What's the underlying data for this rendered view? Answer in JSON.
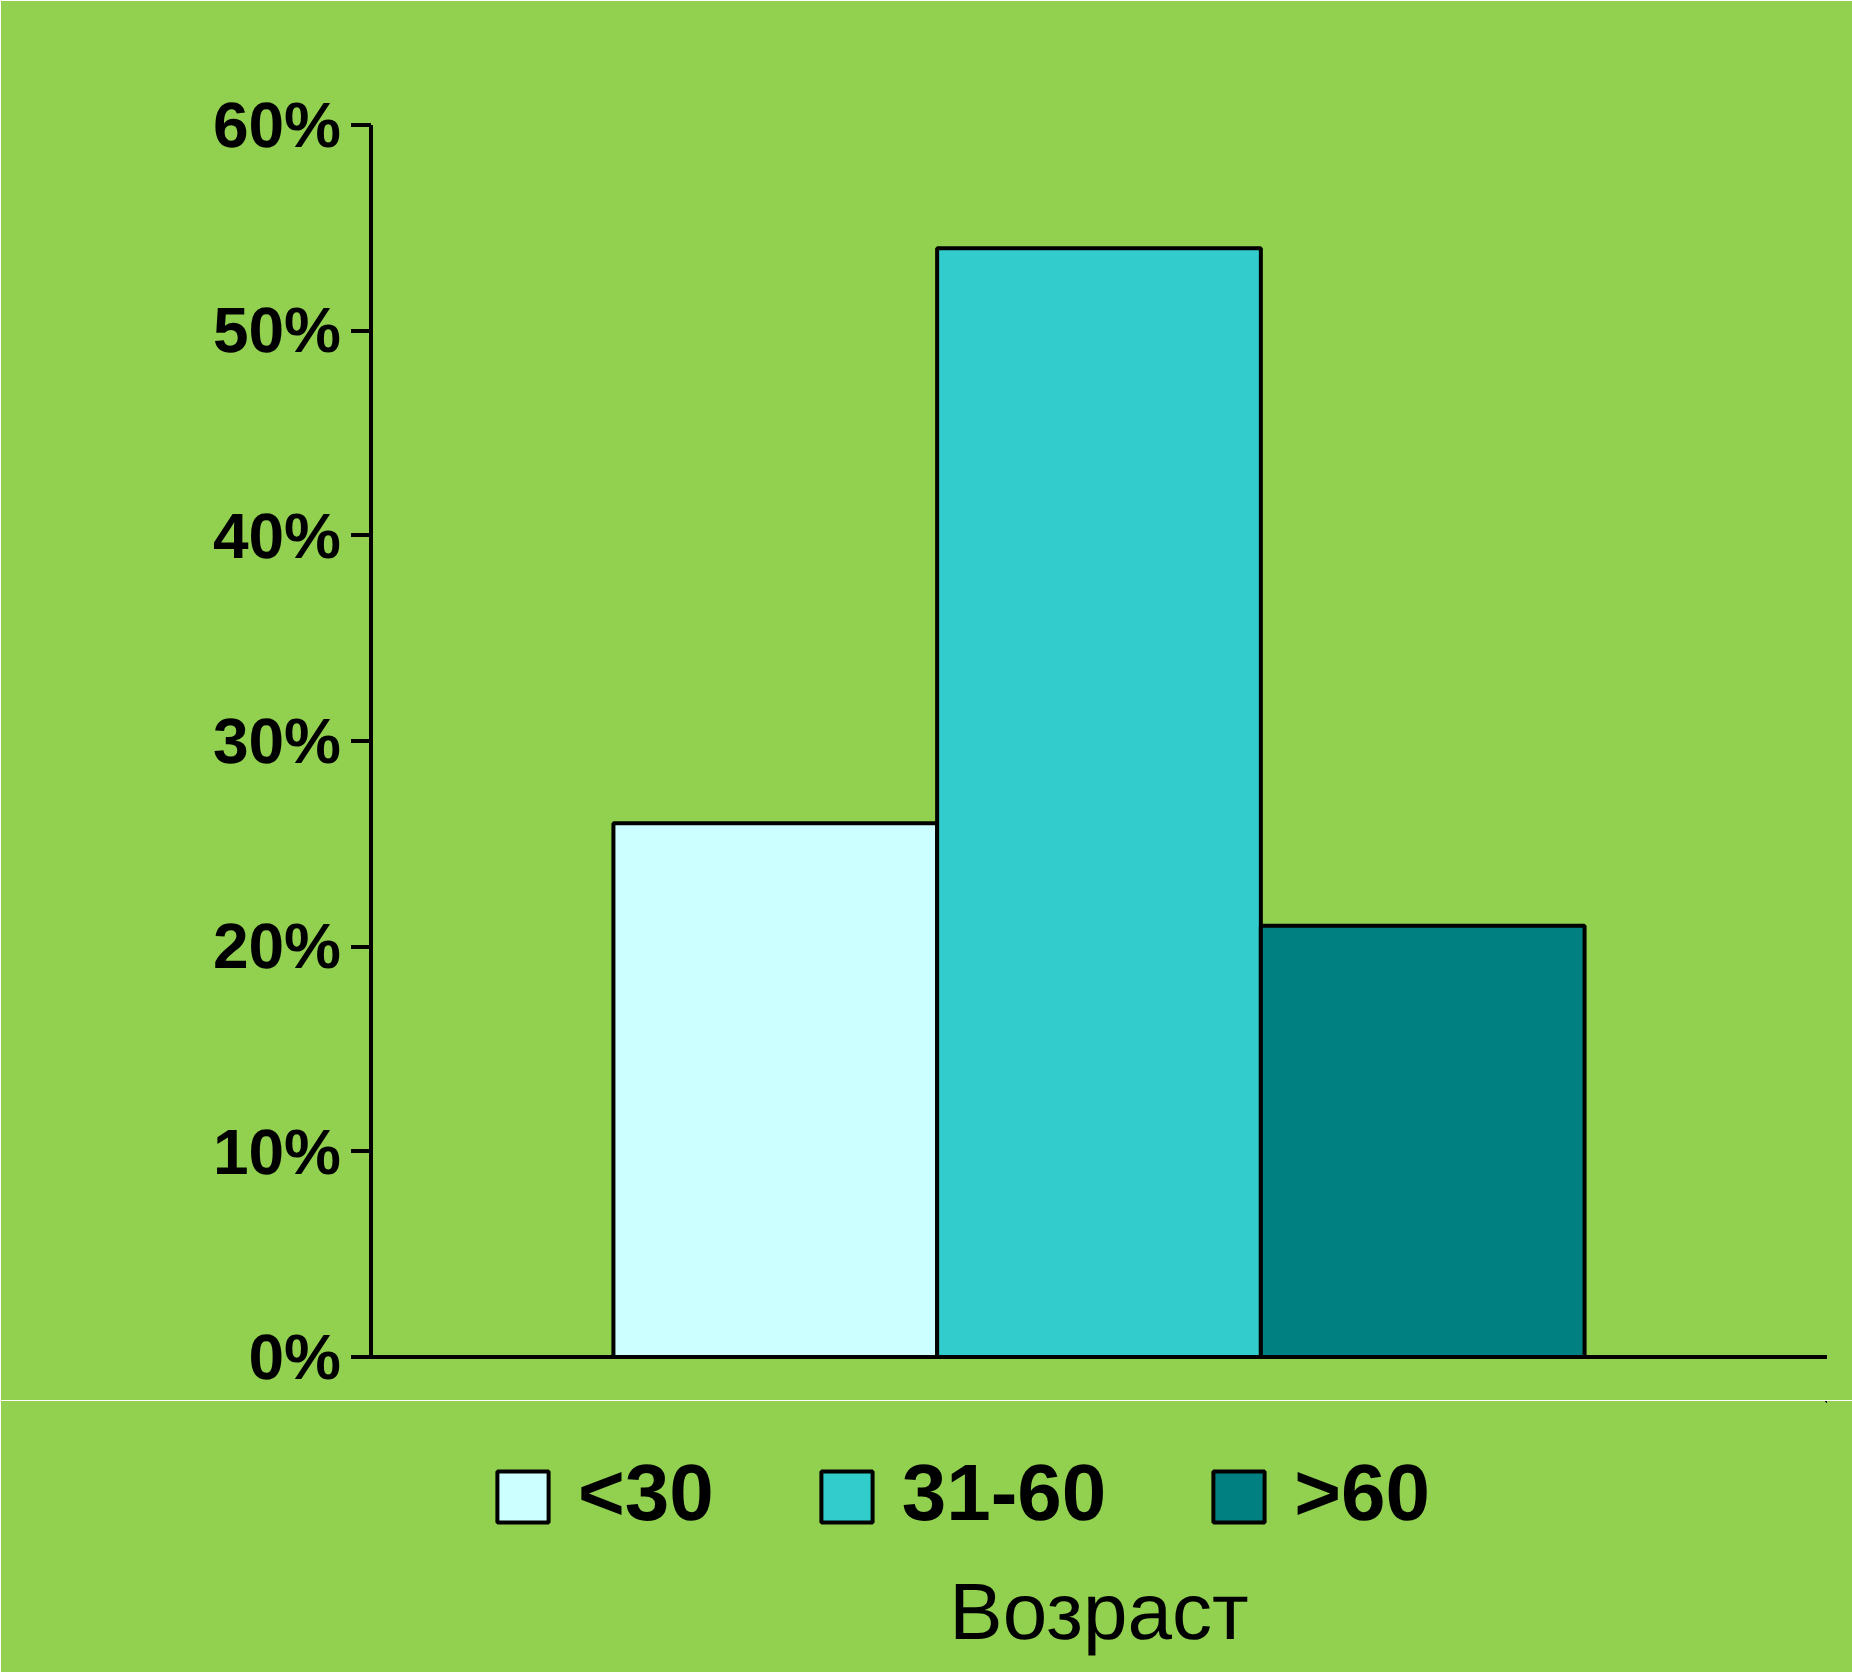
{
  "chart_data": {
    "type": "bar",
    "annotations": [
      "Возраст"
    ],
    "categories": [
      null
    ],
    "series": [
      {
        "name": "<30",
        "color": "#ccffff",
        "values": [
          26
        ]
      },
      {
        "name": "31-60",
        "color": "#33cccc",
        "values": [
          54
        ]
      },
      {
        "name": ">60",
        "color": "#008080",
        "values": [
          21
        ]
      }
    ],
    "ylim": [
      0,
      60
    ],
    "yticks": [
      {
        "value": 0,
        "label": "0%"
      },
      {
        "value": 10,
        "label": "10%"
      },
      {
        "value": 20,
        "label": "20%"
      },
      {
        "value": 30,
        "label": "30%"
      },
      {
        "value": 40,
        "label": "40%"
      },
      {
        "value": 50,
        "label": "50%"
      },
      {
        "value": 60,
        "label": "60%"
      }
    ],
    "grid": false,
    "legend": "bottom"
  }
}
